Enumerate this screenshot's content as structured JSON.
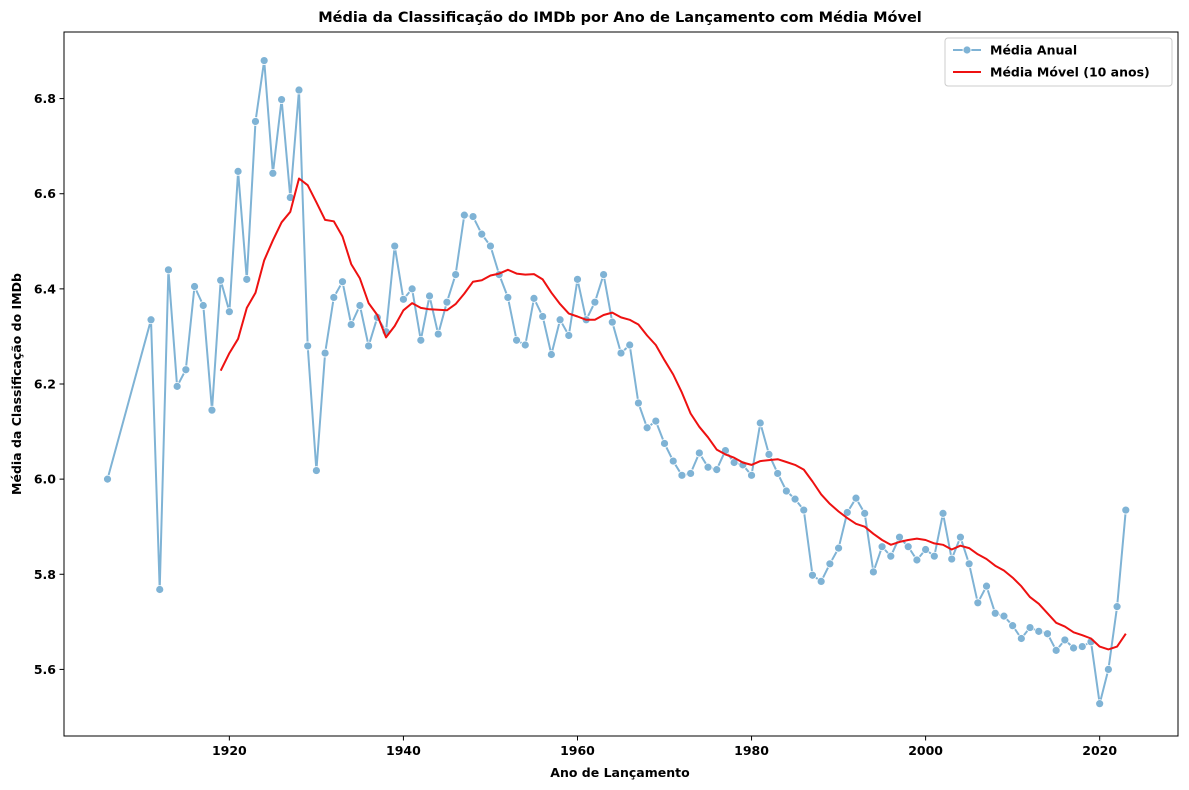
{
  "chart_data": {
    "type": "line",
    "title": "Média da Classificação do IMDb por Ano de Lançamento com Média Móvel",
    "xlabel": "Ano de Lançamento",
    "ylabel": "Média da Classificação do IMDb",
    "xlim": [
      1901,
      2029
    ],
    "ylim": [
      5.46,
      6.94
    ],
    "xticks": [
      1920,
      1940,
      1960,
      1980,
      2000,
      2020
    ],
    "yticks": [
      5.6,
      5.8,
      6.0,
      6.2,
      6.4,
      6.6,
      6.8
    ],
    "grid": false,
    "legend_position": "top-right",
    "series": [
      {
        "name": "Média Anual",
        "color": "#7fb3d5",
        "marker": "circle",
        "x": [
          1906,
          1911,
          1912,
          1913,
          1914,
          1915,
          1916,
          1917,
          1918,
          1919,
          1920,
          1921,
          1922,
          1923,
          1924,
          1925,
          1926,
          1927,
          1928,
          1929,
          1930,
          1931,
          1932,
          1933,
          1934,
          1935,
          1936,
          1937,
          1938,
          1939,
          1940,
          1941,
          1942,
          1943,
          1944,
          1945,
          1946,
          1947,
          1948,
          1949,
          1950,
          1951,
          1952,
          1953,
          1954,
          1955,
          1956,
          1957,
          1958,
          1959,
          1960,
          1961,
          1962,
          1963,
          1964,
          1965,
          1966,
          1967,
          1968,
          1969,
          1970,
          1971,
          1972,
          1973,
          1974,
          1975,
          1976,
          1977,
          1978,
          1979,
          1980,
          1981,
          1982,
          1983,
          1984,
          1985,
          1986,
          1987,
          1988,
          1989,
          1990,
          1991,
          1992,
          1993,
          1994,
          1995,
          1996,
          1997,
          1998,
          1999,
          2000,
          2001,
          2002,
          2003,
          2004,
          2005,
          2006,
          2007,
          2008,
          2009,
          2010,
          2011,
          2012,
          2013,
          2014,
          2015,
          2016,
          2017,
          2018,
          2019,
          2020,
          2021,
          2022,
          2023
        ],
        "values": [
          6.0,
          6.335,
          5.768,
          6.44,
          6.195,
          6.23,
          6.405,
          6.365,
          6.145,
          6.418,
          6.352,
          6.647,
          6.42,
          6.752,
          6.88,
          6.643,
          6.798,
          6.592,
          6.818,
          6.28,
          6.018,
          6.265,
          6.382,
          6.415,
          6.325,
          6.365,
          6.28,
          6.34,
          6.31,
          6.49,
          6.378,
          6.4,
          6.292,
          6.385,
          6.305,
          6.372,
          6.43,
          6.555,
          6.552,
          6.515,
          6.49,
          6.43,
          6.382,
          6.292,
          6.282,
          6.38,
          6.342,
          6.262,
          6.335,
          6.302,
          6.42,
          6.335,
          6.372,
          6.43,
          6.33,
          6.265,
          6.282,
          6.16,
          6.108,
          6.122,
          6.075,
          6.038,
          6.008,
          6.012,
          6.055,
          6.025,
          6.02,
          6.06,
          6.035,
          6.03,
          6.008,
          6.118,
          6.052,
          6.012,
          5.975,
          5.958,
          5.935,
          5.798,
          5.785,
          5.822,
          5.855,
          5.93,
          5.96,
          5.928,
          5.805,
          5.858,
          5.838,
          5.878,
          5.858,
          5.83,
          5.852,
          5.838,
          5.928,
          5.832,
          5.878,
          5.822,
          5.74,
          5.775,
          5.718,
          5.712,
          5.692,
          5.665,
          5.688,
          5.68,
          5.675,
          5.64,
          5.662,
          5.645,
          5.648,
          5.658,
          5.528,
          5.6,
          5.732,
          5.935
        ]
      },
      {
        "name": "Média Móvel (10 anos)",
        "color": "#ee1111",
        "marker": "none",
        "x": [
          1919,
          1920,
          1921,
          1922,
          1923,
          1924,
          1925,
          1926,
          1927,
          1928,
          1929,
          1930,
          1931,
          1932,
          1933,
          1934,
          1935,
          1936,
          1937,
          1938,
          1939,
          1940,
          1941,
          1942,
          1943,
          1944,
          1945,
          1946,
          1947,
          1948,
          1949,
          1950,
          1951,
          1952,
          1953,
          1954,
          1955,
          1956,
          1957,
          1958,
          1959,
          1960,
          1961,
          1962,
          1963,
          1964,
          1965,
          1966,
          1967,
          1968,
          1969,
          1970,
          1971,
          1972,
          1973,
          1974,
          1975,
          1976,
          1977,
          1978,
          1979,
          1980,
          1981,
          1982,
          1983,
          1984,
          1985,
          1986,
          1987,
          1988,
          1989,
          1990,
          1991,
          1992,
          1993,
          1994,
          1995,
          1996,
          1997,
          1998,
          1999,
          2000,
          2001,
          2002,
          2003,
          2004,
          2005,
          2006,
          2007,
          2008,
          2009,
          2010,
          2011,
          2012,
          2013,
          2014,
          2015,
          2016,
          2017,
          2018,
          2019,
          2020,
          2021,
          2022,
          2023
        ],
        "values": [
          6.228,
          6.265,
          6.295,
          6.36,
          6.392,
          6.46,
          6.502,
          6.54,
          6.562,
          6.632,
          6.618,
          6.582,
          6.545,
          6.542,
          6.51,
          6.452,
          6.422,
          6.37,
          6.345,
          6.298,
          6.322,
          6.355,
          6.37,
          6.36,
          6.357,
          6.356,
          6.355,
          6.368,
          6.39,
          6.415,
          6.418,
          6.428,
          6.432,
          6.44,
          6.432,
          6.43,
          6.431,
          6.42,
          6.392,
          6.368,
          6.348,
          6.342,
          6.335,
          6.335,
          6.345,
          6.35,
          6.34,
          6.335,
          6.325,
          6.302,
          6.282,
          6.25,
          6.22,
          6.182,
          6.138,
          6.11,
          6.088,
          6.062,
          6.052,
          6.045,
          6.035,
          6.03,
          6.038,
          6.04,
          6.042,
          6.036,
          6.03,
          6.02,
          5.995,
          5.968,
          5.948,
          5.932,
          5.918,
          5.906,
          5.9,
          5.885,
          5.872,
          5.862,
          5.868,
          5.872,
          5.875,
          5.872,
          5.865,
          5.862,
          5.852,
          5.86,
          5.855,
          5.842,
          5.832,
          5.818,
          5.808,
          5.793,
          5.775,
          5.752,
          5.738,
          5.718,
          5.698,
          5.69,
          5.678,
          5.672,
          5.665,
          5.648,
          5.642,
          5.648,
          5.675
        ]
      }
    ]
  }
}
